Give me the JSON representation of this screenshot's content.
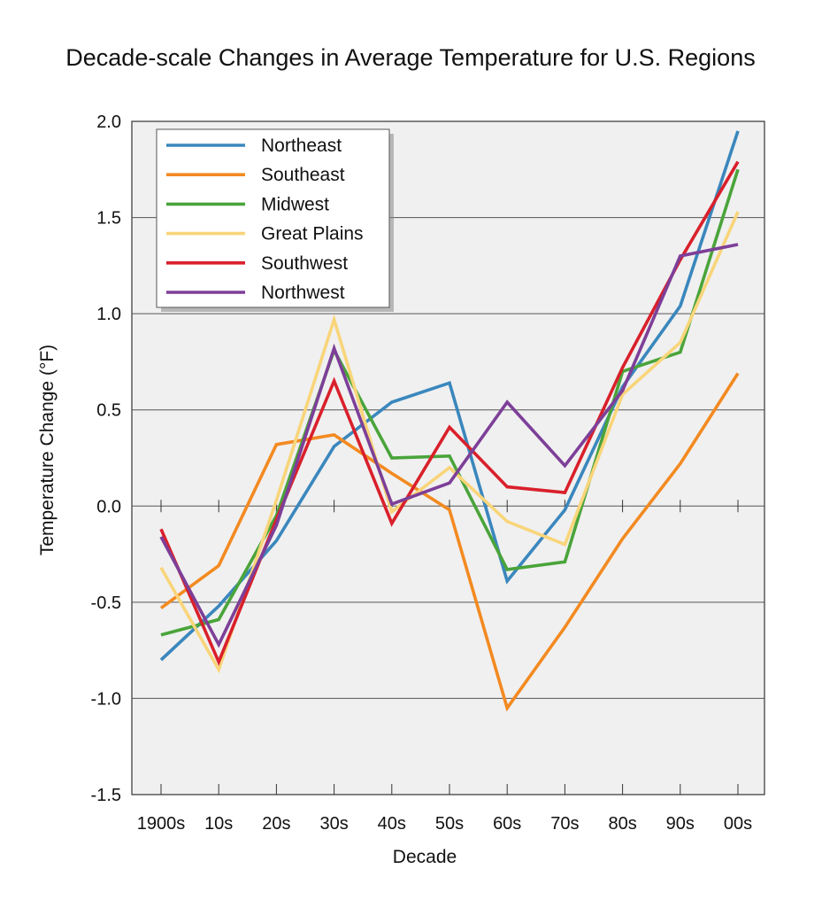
{
  "chart_data": {
    "type": "line",
    "title": "Decade-scale Changes in Average Temperature for U.S. Regions",
    "xlabel": "Decade",
    "ylabel": "Temperature Change (°F)",
    "categories": [
      "1900s",
      "10s",
      "20s",
      "30s",
      "40s",
      "50s",
      "60s",
      "70s",
      "80s",
      "90s",
      "00s"
    ],
    "y_ticks": [
      "2.0",
      "1.5",
      "1.0",
      "0.5",
      "0.0",
      "-0.5",
      "-1.0",
      "-1.5"
    ],
    "ylim": [
      -1.5,
      2.0
    ],
    "grid": "horizontal",
    "legend_position": "top-left",
    "series": [
      {
        "name": "Northeast",
        "color": "#3a87bd",
        "values": [
          -0.8,
          -0.52,
          -0.18,
          0.31,
          0.54,
          0.64,
          -0.39,
          -0.02,
          0.62,
          1.04,
          1.95
        ]
      },
      {
        "name": "Southeast",
        "color": "#f38a21",
        "values": [
          -0.53,
          -0.31,
          0.32,
          0.37,
          0.17,
          -0.02,
          -1.05,
          -0.63,
          -0.17,
          0.22,
          0.69
        ]
      },
      {
        "name": "Midwest",
        "color": "#4aa43a",
        "values": [
          -0.67,
          -0.59,
          -0.05,
          0.81,
          0.25,
          0.26,
          -0.33,
          -0.29,
          0.7,
          0.8,
          1.75
        ]
      },
      {
        "name": "Great Plains",
        "color": "#f9d57a",
        "values": [
          -0.32,
          -0.85,
          0.03,
          0.97,
          -0.03,
          0.2,
          -0.08,
          -0.2,
          0.58,
          0.85,
          1.53
        ]
      },
      {
        "name": "Southwest",
        "color": "#d9202b",
        "values": [
          -0.12,
          -0.81,
          -0.07,
          0.65,
          -0.09,
          0.41,
          0.1,
          0.07,
          0.72,
          1.28,
          1.79
        ]
      },
      {
        "name": "Northwest",
        "color": "#7d3f98",
        "values": [
          -0.16,
          -0.72,
          -0.1,
          0.82,
          0.01,
          0.12,
          0.54,
          0.21,
          0.6,
          1.3,
          1.36
        ]
      }
    ]
  }
}
